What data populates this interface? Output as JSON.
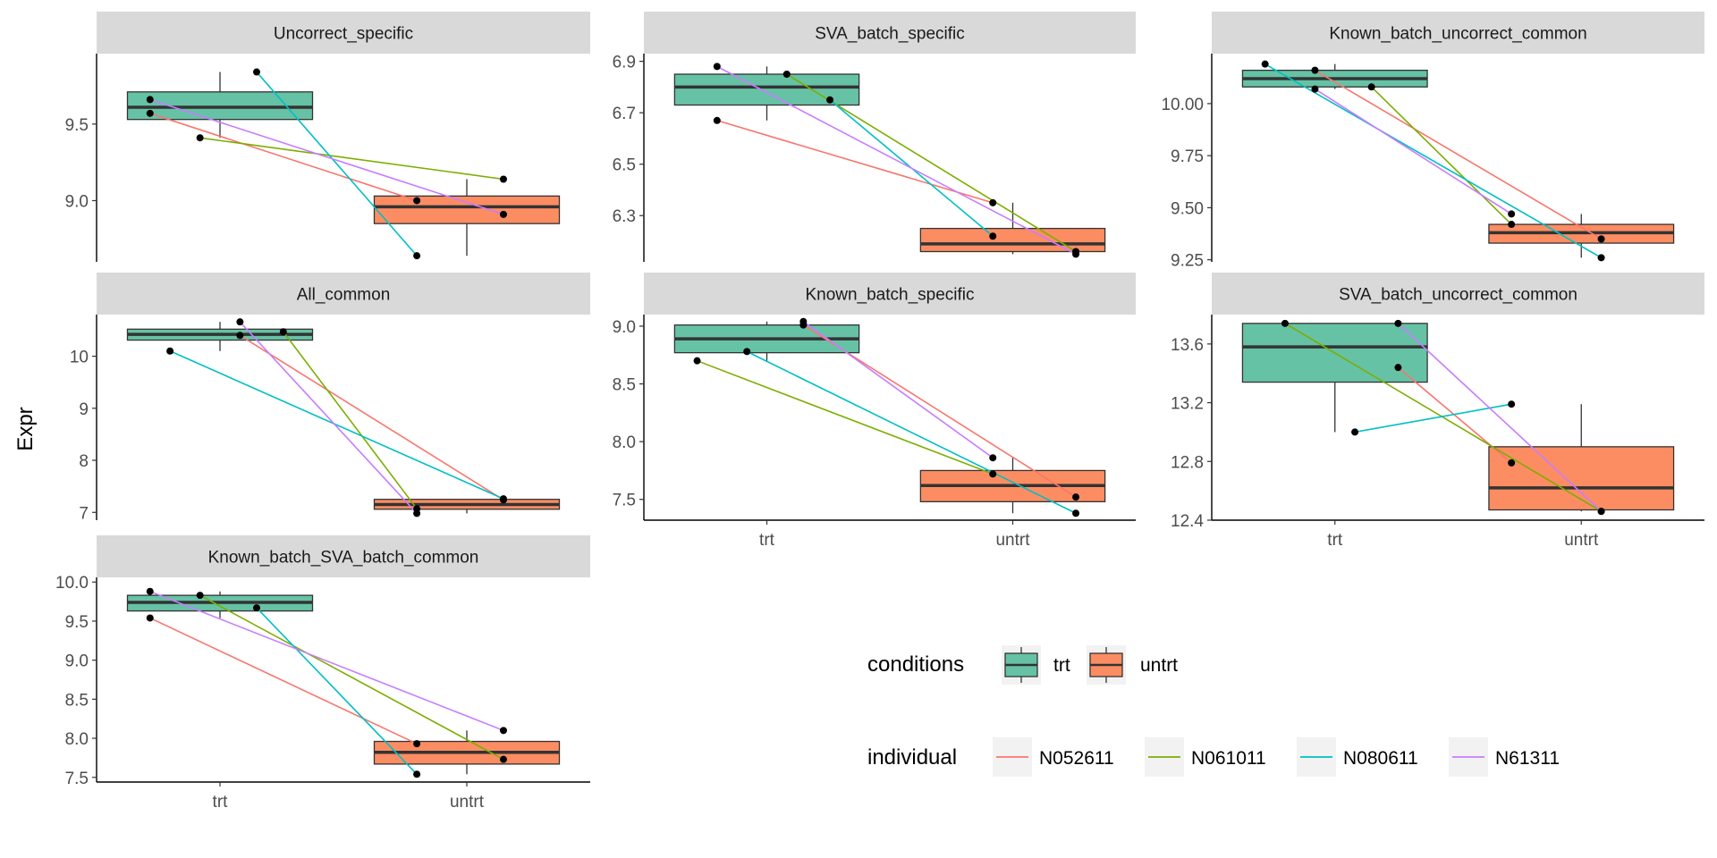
{
  "chart_data": {
    "type": "boxplot",
    "ylabel": "Expr",
    "xlabel": "",
    "categories": [
      "trt",
      "untrt"
    ],
    "individuals": [
      "N052611",
      "N061011",
      "N080611",
      "N61311"
    ],
    "legend": {
      "position": "bottom-right",
      "conditions_title": "conditions",
      "conditions": [
        "trt",
        "untrt"
      ],
      "individual_title": "individual",
      "individual": [
        "N052611",
        "N061011",
        "N080611",
        "N61311"
      ]
    },
    "colors": {
      "trt": "#66c2a5",
      "untrt": "#fc8d62",
      "N052611": "#f8766d",
      "N061011": "#7cae00",
      "N080611": "#00bfc4",
      "N61311": "#c77cff",
      "strip_bg": "#d9d9d9"
    },
    "panels": [
      {
        "title": "Uncorrect_specific",
        "ylim": [
          8.6,
          9.96
        ],
        "yticks": [
          9.0,
          9.5
        ],
        "ytick_labels": [
          "9.0",
          "9.5"
        ],
        "boxes": {
          "trt": {
            "min": 9.41,
            "q1": 9.53,
            "median": 9.61,
            "q3": 9.71,
            "max": 9.84
          },
          "untrt": {
            "min": 8.64,
            "q1": 8.85,
            "median": 8.96,
            "q3": 9.03,
            "max": 9.14
          }
        },
        "points": {
          "trt": {
            "N052611": 9.57,
            "N061011": 9.41,
            "N080611": 9.84,
            "N61311": 9.66
          },
          "untrt": {
            "N052611": 9.0,
            "N061011": 9.14,
            "N080611": 8.64,
            "N61311": 8.91
          }
        }
      },
      {
        "title": "SVA_batch_specific",
        "ylim": [
          6.12,
          6.93
        ],
        "yticks": [
          6.3,
          6.5,
          6.7,
          6.9
        ],
        "ytick_labels": [
          "6.3",
          "6.5",
          "6.7",
          "6.9"
        ],
        "boxes": {
          "trt": {
            "min": 6.67,
            "q1": 6.73,
            "median": 6.8,
            "q3": 6.85,
            "max": 6.88
          },
          "untrt": {
            "min": 6.15,
            "q1": 6.16,
            "median": 6.19,
            "q3": 6.25,
            "max": 6.35
          }
        },
        "points": {
          "trt": {
            "N052611": 6.67,
            "N061011": 6.85,
            "N080611": 6.75,
            "N61311": 6.88
          },
          "untrt": {
            "N052611": 6.35,
            "N061011": 6.16,
            "N080611": 6.22,
            "N61311": 6.15
          }
        }
      },
      {
        "title": "Known_batch_uncorrect_common",
        "ylim": [
          9.24,
          10.24
        ],
        "yticks": [
          9.25,
          9.5,
          9.75,
          10.0
        ],
        "ytick_labels": [
          "9.25",
          "9.50",
          "9.75",
          "10.00"
        ],
        "boxes": {
          "trt": {
            "min": 10.07,
            "q1": 10.08,
            "median": 10.12,
            "q3": 10.16,
            "max": 10.19
          },
          "untrt": {
            "min": 9.26,
            "q1": 9.33,
            "median": 9.38,
            "q3": 9.42,
            "max": 9.47
          }
        },
        "points": {
          "trt": {
            "N052611": 10.16,
            "N061011": 10.08,
            "N080611": 10.19,
            "N61311": 10.07
          },
          "untrt": {
            "N052611": 9.35,
            "N061011": 9.42,
            "N080611": 9.26,
            "N61311": 9.47
          }
        }
      },
      {
        "title": "All_common",
        "ylim": [
          6.85,
          10.8
        ],
        "yticks": [
          7,
          8,
          9,
          10
        ],
        "ytick_labels": [
          "7",
          "8",
          "9",
          "10"
        ],
        "boxes": {
          "trt": {
            "min": 10.1,
            "q1": 10.31,
            "median": 10.42,
            "q3": 10.52,
            "max": 10.66
          },
          "untrt": {
            "min": 6.98,
            "q1": 7.06,
            "median": 7.15,
            "q3": 7.25,
            "max": 7.26
          }
        },
        "points": {
          "trt": {
            "N052611": 10.4,
            "N061011": 10.47,
            "N080611": 10.1,
            "N61311": 10.66
          },
          "untrt": {
            "N052611": 7.24,
            "N061011": 7.07,
            "N080611": 7.26,
            "N61311": 6.98
          }
        }
      },
      {
        "title": "Known_batch_specific",
        "ylim": [
          7.32,
          9.1
        ],
        "yticks": [
          7.5,
          8.0,
          8.5,
          9.0
        ],
        "ytick_labels": [
          "7.5",
          "8.0",
          "8.5",
          "9.0"
        ],
        "boxes": {
          "trt": {
            "min": 8.7,
            "q1": 8.77,
            "median": 8.89,
            "q3": 9.01,
            "max": 9.04
          },
          "untrt": {
            "min": 7.38,
            "q1": 7.48,
            "median": 7.62,
            "q3": 7.75,
            "max": 7.86
          }
        },
        "points": {
          "trt": {
            "N052611": 9.01,
            "N061011": 8.7,
            "N080611": 8.78,
            "N61311": 9.04
          },
          "untrt": {
            "N052611": 7.52,
            "N061011": 7.72,
            "N080611": 7.38,
            "N61311": 7.86
          }
        }
      },
      {
        "title": "SVA_batch_uncorrect_common",
        "ylim": [
          12.4,
          13.8
        ],
        "yticks": [
          12.4,
          12.8,
          13.2,
          13.6
        ],
        "ytick_labels": [
          "12.4",
          "12.8",
          "13.2",
          "13.6"
        ],
        "boxes": {
          "trt": {
            "min": 13.0,
            "q1": 13.34,
            "median": 13.58,
            "q3": 13.74,
            "max": 13.74
          },
          "untrt": {
            "min": 12.46,
            "q1": 12.47,
            "median": 12.62,
            "q3": 12.9,
            "max": 13.19
          }
        },
        "points": {
          "trt": {
            "N052611": 13.44,
            "N061011": 13.74,
            "N080611": 13.0,
            "N61311": 13.74
          },
          "untrt": {
            "N052611": 12.79,
            "N061011": 12.46,
            "N080611": 13.19,
            "N61311": 12.46
          }
        }
      },
      {
        "title": "Known_batch_SVA_batch_common",
        "ylim": [
          7.44,
          10.06
        ],
        "yticks": [
          7.5,
          8.0,
          8.5,
          9.0,
          9.5,
          10.0
        ],
        "ytick_labels": [
          "7.5",
          "8.0",
          "8.5",
          "9.0",
          "9.5",
          "10.0"
        ],
        "boxes": {
          "trt": {
            "min": 9.54,
            "q1": 9.63,
            "median": 9.74,
            "q3": 9.83,
            "max": 9.88
          },
          "untrt": {
            "min": 7.54,
            "q1": 7.67,
            "median": 7.82,
            "q3": 7.96,
            "max": 8.1
          }
        },
        "points": {
          "trt": {
            "N052611": 9.54,
            "N061011": 9.83,
            "N080611": 9.67,
            "N61311": 9.88
          },
          "untrt": {
            "N052611": 7.93,
            "N061011": 7.73,
            "N080611": 7.54,
            "N61311": 8.1
          }
        }
      }
    ]
  }
}
